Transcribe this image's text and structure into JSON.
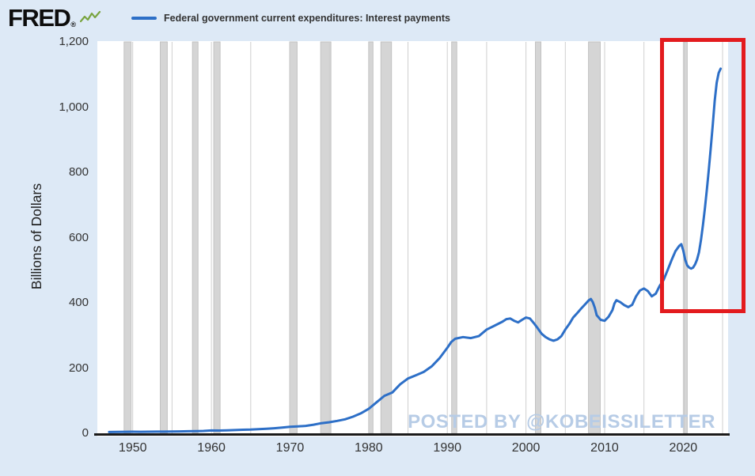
{
  "header": {
    "brand": "FRED",
    "registered_mark": "®",
    "legend_label": "Federal government current expenditures: Interest payments"
  },
  "watermark": "POSTED BY @KOBEISSILETTER",
  "colors": {
    "background": "#dde9f6",
    "plot_background": "#ffffff",
    "line": "#2d6fc7",
    "recession_band": "#d5d5d5",
    "recession_band_edge": "#c2c2c2",
    "gridline": "#cfcfcf",
    "axis_line": "#1a1a1a",
    "tick_text": "#333333",
    "watermark": "#b7cce6",
    "highlight_box": "#e31b1e",
    "logo_sparkline": "#79a43f"
  },
  "chart_data": {
    "type": "line",
    "title": "Federal government current expenditures: Interest payments",
    "xlabel": "",
    "ylabel": "Billions of Dollars",
    "units": "Billions of Dollars",
    "grid": "vertical",
    "legend_position": "top",
    "xlim": [
      1945.5,
      2025.7
    ],
    "ylim": [
      0,
      1200
    ],
    "x_ticks": [
      1950,
      1960,
      1970,
      1980,
      1990,
      2000,
      2010,
      2020
    ],
    "y_ticks": [
      0,
      200,
      400,
      600,
      800,
      1000,
      1200
    ],
    "y_tick_labels": [
      "0",
      "200",
      "400",
      "600",
      "800",
      "1,000",
      "1,200"
    ],
    "gridline_interval_years": 5,
    "recession_bands": [
      [
        1948.9,
        1949.8
      ],
      [
        1953.5,
        1954.4
      ],
      [
        1957.6,
        1958.3
      ],
      [
        1960.3,
        1961.1
      ],
      [
        1969.95,
        1970.9
      ],
      [
        1973.9,
        1975.2
      ],
      [
        1980.0,
        1980.55
      ],
      [
        1981.55,
        1982.9
      ],
      [
        1990.55,
        1991.2
      ],
      [
        2001.2,
        2001.9
      ],
      [
        2007.95,
        2009.45
      ],
      [
        2020.08,
        2020.5
      ]
    ],
    "series": [
      {
        "name": "Federal government current expenditures: Interest payments",
        "color": "#2d6fc7",
        "points": [
          [
            1947,
            4
          ],
          [
            1948,
            4.3
          ],
          [
            1949,
            4.5
          ],
          [
            1950,
            4.8
          ],
          [
            1951,
            4.7
          ],
          [
            1952,
            4.9
          ],
          [
            1953,
            5.1
          ],
          [
            1954,
            5.1
          ],
          [
            1955,
            5.3
          ],
          [
            1956,
            5.7
          ],
          [
            1957,
            6.3
          ],
          [
            1958,
            6.5
          ],
          [
            1959,
            7.3
          ],
          [
            1960,
            8.7
          ],
          [
            1961,
            8.5
          ],
          [
            1962,
            9.2
          ],
          [
            1963,
            10
          ],
          [
            1964,
            10.8
          ],
          [
            1965,
            11.5
          ],
          [
            1966,
            12.7
          ],
          [
            1967,
            13.9
          ],
          [
            1968,
            15.5
          ],
          [
            1969,
            17.8
          ],
          [
            1970,
            20
          ],
          [
            1971,
            21.2
          ],
          [
            1972,
            22.8
          ],
          [
            1973,
            26.5
          ],
          [
            1974,
            31
          ],
          [
            1975,
            34
          ],
          [
            1976,
            38
          ],
          [
            1977,
            43
          ],
          [
            1978,
            51
          ],
          [
            1979,
            61
          ],
          [
            1980,
            75
          ],
          [
            1981,
            95
          ],
          [
            1982,
            115
          ],
          [
            1983,
            125
          ],
          [
            1984,
            150
          ],
          [
            1985,
            168
          ],
          [
            1986,
            178
          ],
          [
            1987,
            188
          ],
          [
            1988,
            205
          ],
          [
            1989,
            230
          ],
          [
            1990,
            262
          ],
          [
            1990.5,
            280
          ],
          [
            1991,
            290
          ],
          [
            1992,
            295
          ],
          [
            1993,
            292
          ],
          [
            1994,
            298
          ],
          [
            1995,
            318
          ],
          [
            1996,
            330
          ],
          [
            1997,
            342
          ],
          [
            1997.5,
            350
          ],
          [
            1998,
            352
          ],
          [
            1998.5,
            345
          ],
          [
            1999,
            340
          ],
          [
            1999.5,
            348
          ],
          [
            2000,
            355
          ],
          [
            2000.5,
            352
          ],
          [
            2001,
            338
          ],
          [
            2001.5,
            322
          ],
          [
            2002,
            305
          ],
          [
            2002.5,
            295
          ],
          [
            2003,
            288
          ],
          [
            2003.5,
            284
          ],
          [
            2004,
            288
          ],
          [
            2004.5,
            298
          ],
          [
            2005,
            318
          ],
          [
            2005.5,
            335
          ],
          [
            2006,
            355
          ],
          [
            2006.5,
            368
          ],
          [
            2007,
            382
          ],
          [
            2007.5,
            395
          ],
          [
            2008,
            408
          ],
          [
            2008.25,
            412
          ],
          [
            2008.5,
            402
          ],
          [
            2008.75,
            385
          ],
          [
            2009,
            362
          ],
          [
            2009.5,
            348
          ],
          [
            2010,
            345
          ],
          [
            2010.5,
            357
          ],
          [
            2011,
            378
          ],
          [
            2011.25,
            398
          ],
          [
            2011.5,
            408
          ],
          [
            2012,
            402
          ],
          [
            2012.5,
            393
          ],
          [
            2013,
            387
          ],
          [
            2013.5,
            394
          ],
          [
            2014,
            420
          ],
          [
            2014.5,
            438
          ],
          [
            2015,
            444
          ],
          [
            2015.5,
            436
          ],
          [
            2016,
            420
          ],
          [
            2016.5,
            428
          ],
          [
            2017,
            452
          ],
          [
            2017.5,
            470
          ],
          [
            2018,
            500
          ],
          [
            2018.5,
            530
          ],
          [
            2019,
            558
          ],
          [
            2019.5,
            575
          ],
          [
            2019.75,
            580
          ],
          [
            2020,
            560
          ],
          [
            2020.25,
            532
          ],
          [
            2020.5,
            515
          ],
          [
            2020.75,
            508
          ],
          [
            2021,
            505
          ],
          [
            2021.25,
            508
          ],
          [
            2021.5,
            518
          ],
          [
            2021.75,
            532
          ],
          [
            2022,
            555
          ],
          [
            2022.25,
            592
          ],
          [
            2022.5,
            638
          ],
          [
            2022.75,
            690
          ],
          [
            2023,
            748
          ],
          [
            2023.25,
            810
          ],
          [
            2023.5,
            875
          ],
          [
            2023.75,
            945
          ],
          [
            2024,
            1020
          ],
          [
            2024.25,
            1075
          ],
          [
            2024.5,
            1105
          ],
          [
            2024.75,
            1118
          ]
        ]
      }
    ],
    "annotation_box": {
      "x_start": 2017.0,
      "x_end": 2026.9,
      "y_start": 392,
      "y_end": 1212,
      "color": "#e31b1e"
    }
  }
}
